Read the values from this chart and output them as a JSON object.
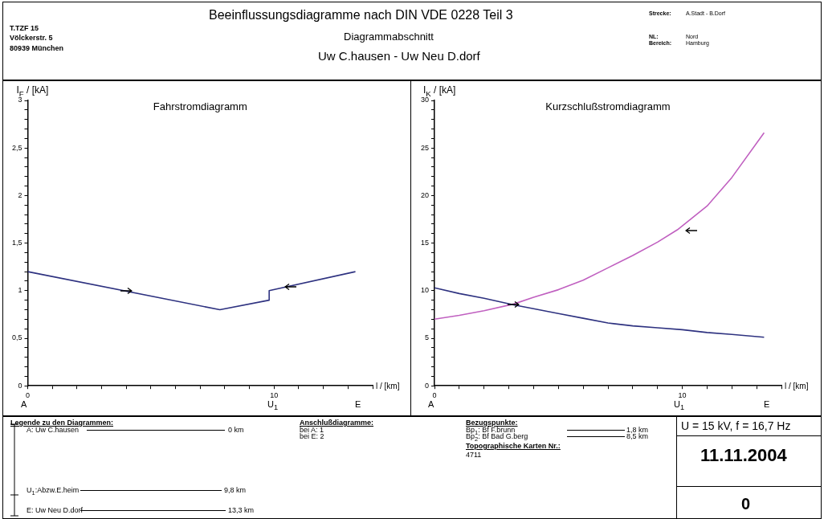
{
  "chart_data": [
    {
      "type": "line",
      "title": "Fahrstromdiagramm",
      "xlabel": "l / [km]",
      "ylabel": "I$_{F}$ / [kA]",
      "series": [
        {
          "color": "#2e3280",
          "x": [
            0,
            7.8,
            9.8,
            9.8,
            13.3
          ],
          "values": [
            1.2,
            0.8,
            0.9,
            1.0,
            1.2
          ]
        }
      ],
      "xlim": [
        0,
        14
      ],
      "xticks": [
        {
          "value": 0,
          "label": "0"
        },
        {
          "value": 1,
          "label": null
        },
        {
          "value": 2,
          "label": null
        },
        {
          "value": 3,
          "label": null
        },
        {
          "value": 4,
          "label": null
        },
        {
          "value": 5,
          "label": null
        },
        {
          "value": 6,
          "label": null
        },
        {
          "value": 7,
          "label": null
        },
        {
          "value": 8,
          "label": null
        },
        {
          "value": 9,
          "label": null
        },
        {
          "value": 10,
          "label": "10"
        },
        {
          "value": 11,
          "label": null
        },
        {
          "value": 12,
          "label": null
        },
        {
          "value": 13,
          "label": null
        },
        {
          "value": 14,
          "label": null
        }
      ],
      "ylim": [
        0,
        3
      ],
      "yticks": [
        {
          "value": 0,
          "label": "0"
        },
        {
          "value": 0.1,
          "label": null
        },
        {
          "value": 0.2,
          "label": null
        },
        {
          "value": 0.3,
          "label": null
        },
        {
          "value": 0.4,
          "label": null
        },
        {
          "value": 0.5,
          "label": "0,5"
        },
        {
          "value": 0.6,
          "label": null
        },
        {
          "value": 0.7,
          "label": null
        },
        {
          "value": 0.8,
          "label": null
        },
        {
          "value": 0.9,
          "label": null
        },
        {
          "value": 1,
          "label": "1"
        },
        {
          "value": 1.1,
          "label": null
        },
        {
          "value": 1.2,
          "label": null
        },
        {
          "value": 1.3,
          "label": null
        },
        {
          "value": 1.4,
          "label": null
        },
        {
          "value": 1.5,
          "label": "1,5"
        },
        {
          "value": 1.6,
          "label": null
        },
        {
          "value": 1.7,
          "label": null
        },
        {
          "value": 1.8,
          "label": null
        },
        {
          "value": 1.9,
          "label": null
        },
        {
          "value": 2,
          "label": "2"
        },
        {
          "value": 2.1,
          "label": null
        },
        {
          "value": 2.2,
          "label": null
        },
        {
          "value": 2.3,
          "label": null
        },
        {
          "value": 2.4,
          "label": null
        },
        {
          "value": 2.5,
          "label": "2,5"
        },
        {
          "value": 2.6,
          "label": null
        },
        {
          "value": 2.7,
          "label": null
        },
        {
          "value": 2.8,
          "label": null
        },
        {
          "value": 2.9,
          "label": null
        },
        {
          "value": 3,
          "label": "3"
        }
      ],
      "legend": false,
      "marker": "none",
      "line_style": "solid",
      "annotations": [
        "T.TZF 15",
        "Völckerstr. 5",
        "80939 München",
        "Beeinflussungsdiagramme nach DIN VDE 0228 Teil 3",
        "Diagrammabschnitt",
        "Uw C.hausen - Uw Neu D.dorf",
        "Strecke:",
        "A.Stadt - B.Dorf",
        "NL:",
        "Nord",
        "Bereich:",
        "Hamburg",
        "Legende zu den Diagrammen:",
        "A: Uw C.hausen",
        "0 km",
        "U$_{1}$:Abzw.E.heim",
        "9,8 km",
        "E: Uw Neu D.dorf",
        "13,3 km",
        "Anschlußdiagramme:",
        "bei A: 1",
        "bei E: 2",
        "Bezugspunkte:",
        "Bp$_{1}$: Bf F.brunn",
        "1,8 km",
        "Bp$_{2}$: Bf Bad G.berg",
        "8,5 km",
        "Topographische Karten Nr.:",
        "4711",
        "U = 15 kV, f = 16,7 Hz",
        "11.11.2004",
        "0",
        "A",
        "U$_{1}$",
        "E"
      ]
    },
    {
      "type": "line",
      "title": "Kurzschlußstromdiagramm",
      "xlabel": "l / [km]",
      "ylabel": "I$_{K}$ / [kA]",
      "series": [
        {
          "color": "#2e3280",
          "x": [
            0,
            1,
            2,
            3.2,
            4,
            5,
            6,
            7,
            8,
            9,
            10,
            11,
            12,
            13.3
          ],
          "values": [
            10.3,
            9.7,
            9.2,
            8.5,
            8.1,
            7.6,
            7.1,
            6.6,
            6.3,
            6.1,
            5.9,
            5.6,
            5.4,
            5.1
          ]
        },
        {
          "color": "#c060c0",
          "x": [
            0,
            1,
            2,
            3.2,
            4,
            5,
            6,
            7,
            8,
            9,
            9.8,
            11,
            12,
            13.3
          ],
          "values": [
            7.0,
            7.4,
            7.9,
            8.6,
            9.3,
            10.1,
            11.1,
            12.4,
            13.7,
            15.1,
            16.4,
            18.9,
            21.9,
            26.6
          ]
        }
      ],
      "xlim": [
        0,
        14
      ],
      "xticks": [
        {
          "value": 0,
          "label": "0"
        },
        {
          "value": 1,
          "label": null
        },
        {
          "value": 2,
          "label": null
        },
        {
          "value": 3,
          "label": null
        },
        {
          "value": 4,
          "label": null
        },
        {
          "value": 5,
          "label": null
        },
        {
          "value": 6,
          "label": null
        },
        {
          "value": 7,
          "label": null
        },
        {
          "value": 8,
          "label": null
        },
        {
          "value": 9,
          "label": null
        },
        {
          "value": 10,
          "label": "10"
        },
        {
          "value": 11,
          "label": null
        },
        {
          "value": 12,
          "label": null
        },
        {
          "value": 13,
          "label": null
        },
        {
          "value": 14,
          "label": null
        }
      ],
      "ylim": [
        0,
        30
      ],
      "yticks": [
        0,
        {
          "value": 1,
          "label": null
        },
        {
          "value": 2,
          "label": null
        },
        {
          "value": 3,
          "label": null
        },
        {
          "value": 4,
          "label": null
        },
        5,
        {
          "value": 6,
          "label": null
        },
        {
          "value": 7,
          "label": null
        },
        {
          "value": 8,
          "label": null
        },
        {
          "value": 9,
          "label": null
        },
        10,
        {
          "value": 11,
          "label": null
        },
        {
          "value": 12,
          "label": null
        },
        {
          "value": 13,
          "label": null
        },
        {
          "value": 14,
          "label": null
        },
        15,
        {
          "value": 16,
          "label": null
        },
        {
          "value": 17,
          "label": null
        },
        {
          "value": 18,
          "label": null
        },
        {
          "value": 19,
          "label": null
        },
        20,
        {
          "value": 21,
          "label": null
        },
        {
          "value": 22,
          "label": null
        },
        {
          "value": 23,
          "label": null
        },
        {
          "value": 24,
          "label": null
        },
        25,
        {
          "value": 26,
          "label": null
        },
        {
          "value": 27,
          "label": null
        },
        {
          "value": 28,
          "label": null
        },
        {
          "value": 29,
          "label": null
        },
        30
      ],
      "legend": false,
      "marker": "none",
      "line_style": "solid",
      "annotations": [
        "A",
        "U$_{1}$",
        "E"
      ]
    }
  ]
}
